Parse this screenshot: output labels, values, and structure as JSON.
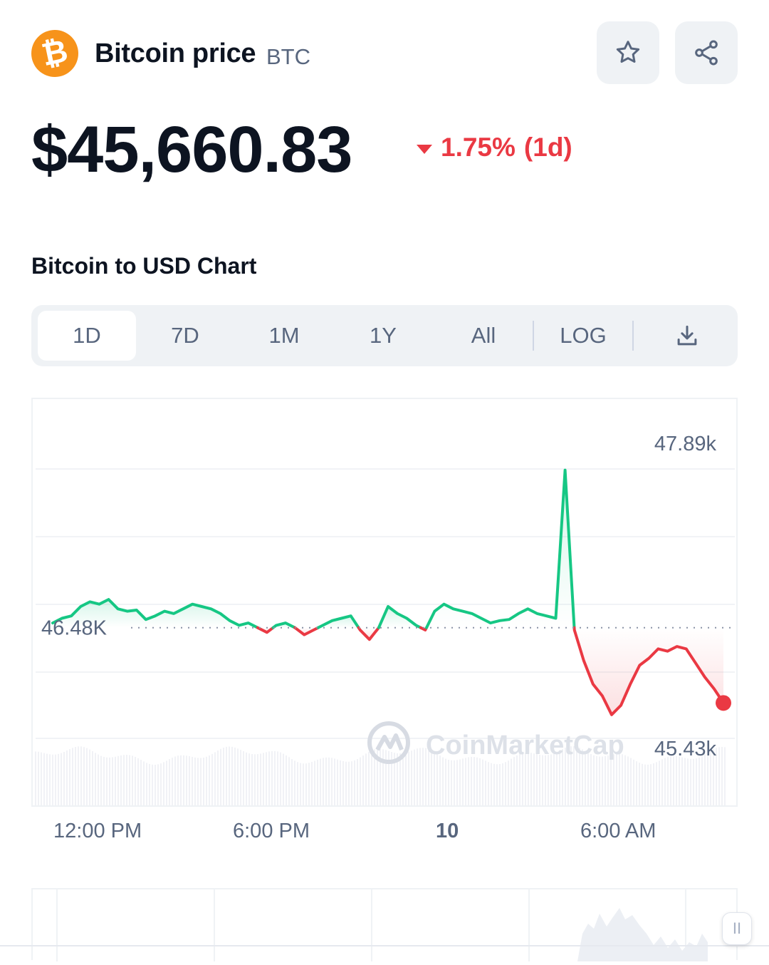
{
  "header": {
    "coin_glyph": "₿",
    "coin_name": "Bitcoin price",
    "coin_symbol": "BTC",
    "icons": [
      "bitcoin-logo",
      "star-icon",
      "share-icon"
    ]
  },
  "price": {
    "value": "$45,660.83",
    "change_percent": "1.75%",
    "change_period": "(1d)",
    "direction": "down",
    "down_color": "#ea3943",
    "up_color": "#16c784"
  },
  "chart_heading": "Bitcoin to USD Chart",
  "tabs": [
    {
      "label": "1D",
      "active": true
    },
    {
      "label": "7D",
      "active": false
    },
    {
      "label": "1M",
      "active": false
    },
    {
      "label": "1Y",
      "active": false
    },
    {
      "label": "All",
      "active": false
    },
    {
      "label": "LOG",
      "active": false
    }
  ],
  "download_icon": "download-icon",
  "chart_data": {
    "type": "line",
    "y_labels": {
      "high": "47.89k",
      "reference": "46.48K",
      "low": "45.43k"
    },
    "reference_value": 46.48,
    "ylim": [
      45.43,
      47.89
    ],
    "x_tick_labels": [
      "12:00 PM",
      "6:00 PM",
      "10",
      "6:00 AM"
    ],
    "watermark": "CoinMarketCap",
    "series": [
      {
        "values": [
          46.52,
          46.56,
          46.58,
          46.66,
          46.7,
          46.68,
          46.72,
          46.64,
          46.62,
          46.63,
          46.55,
          46.58,
          46.62,
          46.6,
          46.64,
          46.68,
          46.66,
          46.64,
          46.6,
          46.54,
          46.5,
          46.52,
          46.48,
          46.44,
          46.5,
          46.52,
          46.48,
          46.42,
          46.46,
          46.5,
          46.54,
          46.56,
          46.58,
          46.46,
          46.38,
          46.48,
          46.66,
          46.6,
          46.56,
          46.5,
          46.46,
          46.62,
          46.68,
          46.64,
          46.62,
          46.6,
          46.56,
          46.52,
          46.54,
          46.55,
          46.6,
          46.64,
          46.6,
          46.58,
          46.56,
          47.82,
          46.46,
          46.2,
          46.0,
          45.9,
          45.74,
          45.82,
          46.0,
          46.16,
          46.22,
          46.3,
          46.28,
          46.32,
          46.3,
          46.18,
          46.06,
          45.96,
          45.84
        ],
        "color_above": "#16c784",
        "color_below": "#ea3943"
      }
    ]
  },
  "pause_label": "II"
}
